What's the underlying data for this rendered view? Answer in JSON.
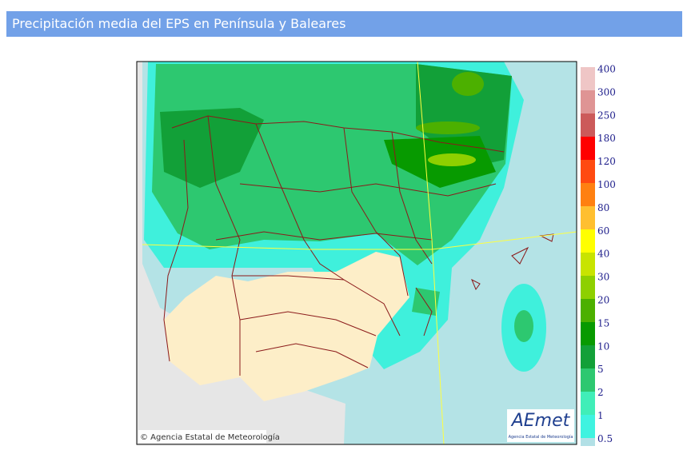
{
  "header": {
    "title": "Precipitación media del EPS en Península y Baleares"
  },
  "map": {
    "credit": "© Agencia Estatal de Meteorología",
    "logo": {
      "brand": "AEmet",
      "caption": "Agencia Estatal de Meteorología"
    }
  },
  "legend": {
    "labels": [
      "400",
      "300",
      "250",
      "180",
      "120",
      "100",
      "80",
      "60",
      "40",
      "30",
      "20",
      "15",
      "10",
      "5",
      "2",
      "1",
      "0.5"
    ],
    "colors": [
      "#efc6c6",
      "#df9494",
      "#cc5a5a",
      "#ff0000",
      "#ff4a10",
      "#ff8010",
      "#ffbf30",
      "#ffff00",
      "#c8e400",
      "#8ed000",
      "#4cb000",
      "#079a00",
      "#12a038",
      "#2dc870",
      "#40eeb8",
      "#3ff3e0"
    ],
    "base_color": "#b2e0e6"
  }
}
